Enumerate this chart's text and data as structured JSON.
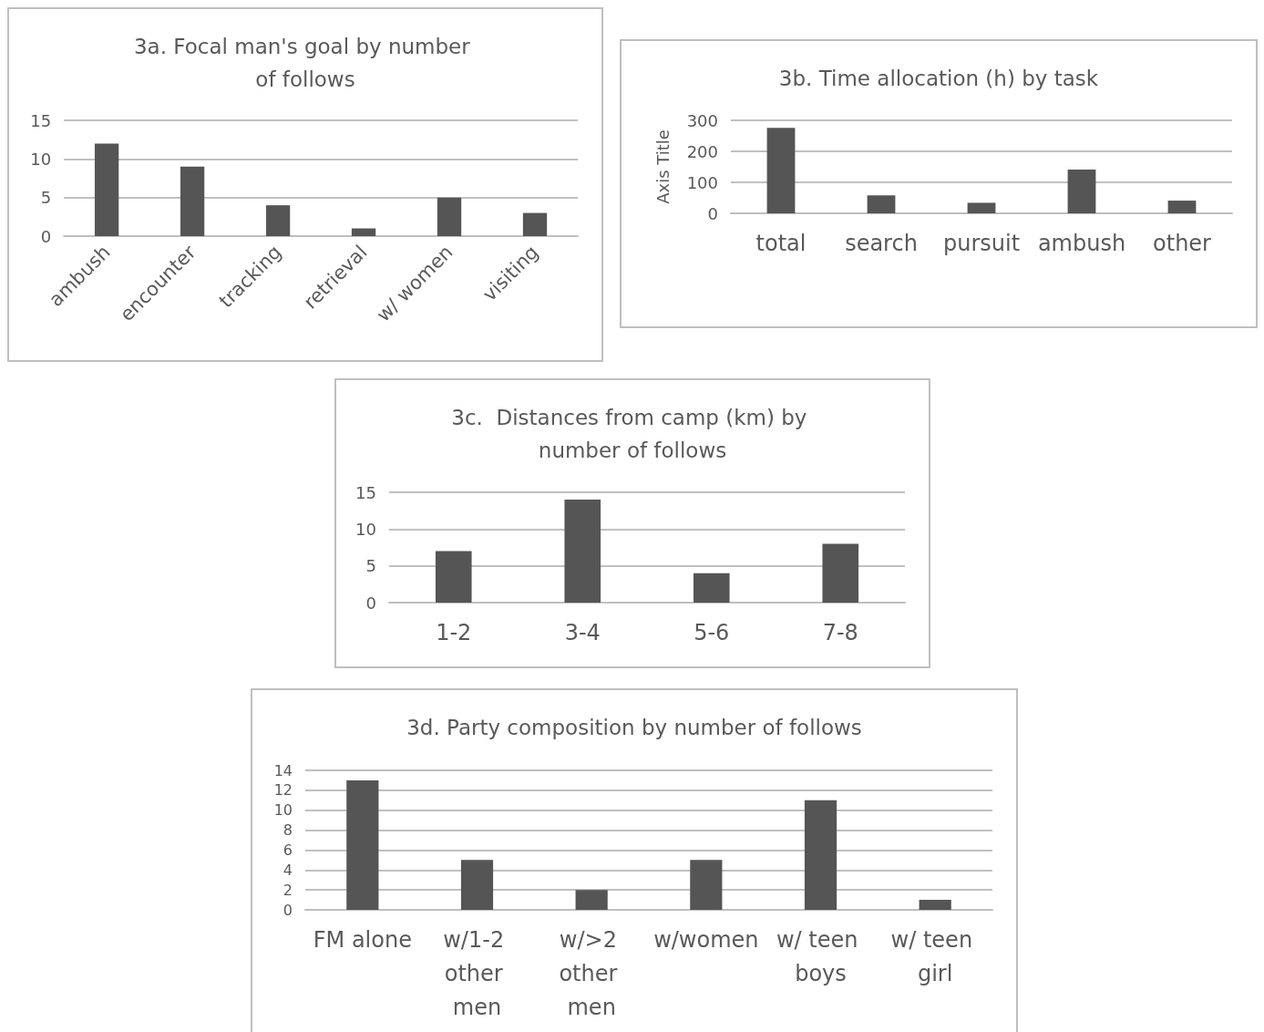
{
  "chart_data": [
    {
      "type": "bar",
      "title": "3a. Focal man's goal by number of follows",
      "categories": [
        "ambush",
        "encounter",
        "tracking",
        "retrieval",
        "w/ women",
        "visiting"
      ],
      "values": [
        12,
        9,
        4,
        1,
        5,
        3
      ],
      "color": "#555555",
      "ylim": [
        0,
        15
      ],
      "yticks": [
        0,
        5,
        10,
        15
      ],
      "grid": "y"
    },
    {
      "type": "bar",
      "title": "3b. Time allocation (h) by task",
      "ylabel": "Axis Title",
      "categories": [
        "total",
        "search",
        "pursuit",
        "ambush",
        "other"
      ],
      "values": [
        276,
        58,
        34,
        141,
        41
      ],
      "color": "#555555",
      "ylim": [
        0,
        300
      ],
      "yticks": [
        0,
        100,
        200,
        300
      ],
      "grid": "y"
    },
    {
      "type": "bar",
      "title": "3c.  Distances from camp (km) by number of follows",
      "categories": [
        "1-2",
        "3-4",
        "5-6",
        "7-8"
      ],
      "values": [
        7,
        14,
        4,
        8
      ],
      "color": "#555555",
      "ylim": [
        0,
        15
      ],
      "yticks": [
        0,
        5,
        10,
        15
      ],
      "grid": "y"
    },
    {
      "type": "bar",
      "title": "3d. Party composition by number of follows",
      "categories": [
        "FM alone",
        "w/1-2 other men",
        "w/>2 other men",
        "w/women",
        "w/ teen boys",
        "w/ teen girl"
      ],
      "values": [
        13,
        5,
        2,
        5,
        11,
        1
      ],
      "color": "#555555",
      "ylim": [
        0,
        14
      ],
      "yticks": [
        0,
        2,
        4,
        6,
        8,
        10,
        12,
        14
      ],
      "grid": "y"
    }
  ]
}
